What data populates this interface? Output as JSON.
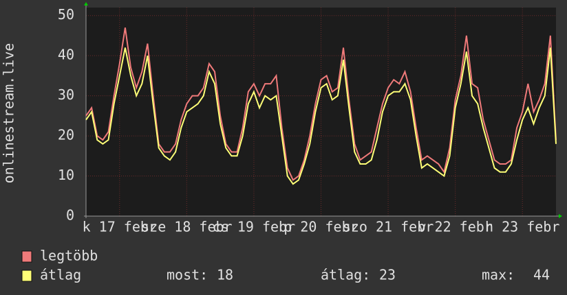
{
  "chart_data": {
    "type": "line",
    "y_label": "onlinestream.live",
    "x": [
      0,
      2,
      4,
      6,
      8,
      10,
      12,
      14,
      16,
      18,
      20,
      22,
      24,
      26,
      28,
      30,
      32,
      34,
      36,
      38,
      40,
      42,
      44,
      46,
      48,
      50,
      52,
      54,
      56,
      58,
      60,
      62,
      64,
      66,
      68,
      70,
      72,
      74,
      76,
      78,
      80,
      82,
      84,
      86,
      88,
      90,
      92,
      94,
      96,
      98,
      100,
      102,
      104,
      106,
      108,
      110,
      112,
      114,
      116,
      118,
      120,
      122,
      124,
      126,
      128,
      130,
      132,
      134,
      136,
      138,
      140,
      142,
      144,
      146,
      148,
      150,
      152,
      154,
      156,
      158,
      160,
      162,
      164,
      166,
      168
    ],
    "xlim": [
      0,
      168
    ],
    "xticks": [
      {
        "value": 12,
        "label": "k 17 febr"
      },
      {
        "value": 36,
        "label": "sze 18 febr"
      },
      {
        "value": 60,
        "label": "cs 19 febr"
      },
      {
        "value": 84,
        "label": "p 20 febr"
      },
      {
        "value": 108,
        "label": "szo 21 febr"
      },
      {
        "value": 132,
        "label": "v 22 febr"
      },
      {
        "value": 156,
        "label": "h 23 febr"
      }
    ],
    "ylim": [
      0,
      52
    ],
    "yticks": [
      0,
      10,
      20,
      30,
      40,
      50
    ],
    "grid": true,
    "series": [
      {
        "name": "legtöbb",
        "color": "#f07a7a",
        "values": [
          25,
          27,
          20,
          19,
          21,
          30,
          38,
          47,
          37,
          32,
          36,
          43,
          30,
          18,
          16,
          16,
          18,
          24,
          28,
          30,
          30,
          32,
          38,
          36,
          25,
          18,
          16,
          16,
          22,
          31,
          33,
          30,
          33,
          33,
          35,
          22,
          12,
          9,
          10,
          14,
          20,
          28,
          34,
          35,
          31,
          32,
          42,
          29,
          18,
          14,
          15,
          16,
          22,
          28,
          32,
          34,
          33,
          36,
          31,
          22,
          14,
          15,
          14,
          13,
          11,
          17,
          29,
          35,
          45,
          33,
          32,
          24,
          19,
          14,
          13,
          13,
          14,
          22,
          26,
          33,
          26,
          29,
          33,
          45,
          19
        ]
      },
      {
        "name": "átlag",
        "color": "#ffff77",
        "values": [
          24,
          26,
          19,
          18,
          19,
          28,
          35,
          42,
          35,
          30,
          33,
          40,
          28,
          17,
          15,
          14,
          16,
          22,
          26,
          27,
          28,
          30,
          36,
          33,
          23,
          17,
          15,
          15,
          20,
          28,
          31,
          27,
          30,
          29,
          30,
          20,
          10,
          8,
          9,
          13,
          18,
          26,
          32,
          33,
          29,
          30,
          39,
          27,
          16,
          13,
          13,
          14,
          19,
          26,
          30,
          31,
          31,
          33,
          29,
          20,
          12,
          13,
          12,
          11,
          10,
          15,
          27,
          33,
          41,
          30,
          28,
          22,
          17,
          12,
          11,
          11,
          13,
          19,
          24,
          27,
          23,
          27,
          30,
          42,
          18
        ]
      }
    ],
    "stats": [
      {
        "label": "most:",
        "value": 18
      },
      {
        "label": "átlag:",
        "value": 23
      },
      {
        "label": "max:",
        "value": 44
      }
    ]
  }
}
